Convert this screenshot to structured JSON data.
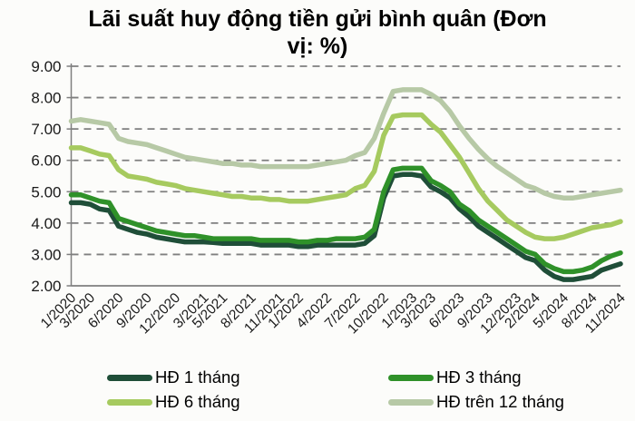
{
  "title_lines": [
    "Lãi suất huy động tiền gửi bình quân (Đơn",
    "vị: %)"
  ],
  "chart_data": {
    "type": "line",
    "title": "Lãi suất huy động tiền gửi bình quân (Đơn vị: %)",
    "unit": "%",
    "ylim": [
      2,
      9
    ],
    "y_ticks": [
      "9.00",
      "8.00",
      "7.00",
      "6.00",
      "5.00",
      "4.00",
      "3.00",
      "2.00"
    ],
    "grid": "horizontal-dashed",
    "legend_position": "bottom",
    "colors": {
      "gridline": "#7f7f7f",
      "axis": "#7f7f7f",
      "tick_text": "#1a1a1a"
    },
    "x_months": [
      "1/2020",
      "2/2020",
      "3/2020",
      "4/2020",
      "5/2020",
      "6/2020",
      "7/2020",
      "8/2020",
      "9/2020",
      "10/2020",
      "11/2020",
      "12/2020",
      "1/2021",
      "2/2021",
      "3/2021",
      "4/2021",
      "5/2021",
      "6/2021",
      "7/2021",
      "8/2021",
      "9/2021",
      "10/2021",
      "11/2021",
      "12/2021",
      "1/2022",
      "2/2022",
      "3/2022",
      "4/2022",
      "5/2022",
      "6/2022",
      "7/2022",
      "8/2022",
      "9/2022",
      "10/2022",
      "11/2022",
      "12/2022",
      "1/2023",
      "2/2023",
      "3/2023",
      "4/2023",
      "5/2023",
      "6/2023",
      "7/2023",
      "8/2023",
      "9/2023",
      "10/2023",
      "11/2023",
      "12/2023",
      "1/2024",
      "2/2024",
      "3/2024",
      "4/2024",
      "5/2024",
      "6/2024",
      "7/2024",
      "8/2024",
      "9/2024",
      "10/2024",
      "11/2024"
    ],
    "x_tick_indices": [
      0,
      2,
      5,
      8,
      11,
      14,
      16,
      19,
      22,
      24,
      27,
      30,
      33,
      36,
      38,
      41,
      44,
      47,
      49,
      52,
      55,
      58
    ],
    "x_tick_labels": [
      "1/2020",
      "3/2020",
      "6/2020",
      "9/2020",
      "12/2020",
      "3/2021",
      "5/2021",
      "8/2021",
      "11/2021",
      "1/2022",
      "4/2022",
      "7/2022",
      "10/2022",
      "1/2023",
      "3/2023",
      "6/2023",
      "9/2023",
      "12/2023",
      "2/2024",
      "5/2024",
      "8/2024",
      "11/2024"
    ],
    "series": [
      {
        "name": "HĐ 1 tháng",
        "color": "#1f4e38",
        "values": [
          4.65,
          4.65,
          4.6,
          4.45,
          4.4,
          3.9,
          3.8,
          3.7,
          3.65,
          3.55,
          3.5,
          3.45,
          3.4,
          3.4,
          3.4,
          3.38,
          3.35,
          3.35,
          3.35,
          3.35,
          3.3,
          3.3,
          3.3,
          3.3,
          3.25,
          3.25,
          3.3,
          3.3,
          3.3,
          3.3,
          3.3,
          3.35,
          3.6,
          4.8,
          5.5,
          5.55,
          5.55,
          5.5,
          5.15,
          5.0,
          4.8,
          4.45,
          4.2,
          3.9,
          3.7,
          3.5,
          3.3,
          3.1,
          2.9,
          2.8,
          2.5,
          2.3,
          2.2,
          2.2,
          2.25,
          2.3,
          2.5,
          2.6,
          2.7
        ]
      },
      {
        "name": "HĐ 3 tháng",
        "color": "#2f9129",
        "values": [
          4.9,
          4.9,
          4.8,
          4.7,
          4.65,
          4.15,
          4.05,
          3.95,
          3.85,
          3.75,
          3.7,
          3.65,
          3.6,
          3.6,
          3.55,
          3.5,
          3.5,
          3.5,
          3.5,
          3.5,
          3.45,
          3.45,
          3.45,
          3.45,
          3.4,
          3.4,
          3.45,
          3.45,
          3.5,
          3.5,
          3.5,
          3.55,
          3.8,
          5.0,
          5.7,
          5.75,
          5.75,
          5.75,
          5.35,
          5.2,
          5.0,
          4.6,
          4.4,
          4.1,
          3.9,
          3.7,
          3.5,
          3.3,
          3.1,
          3.0,
          2.7,
          2.55,
          2.45,
          2.45,
          2.5,
          2.6,
          2.8,
          2.95,
          3.05
        ]
      },
      {
        "name": "HĐ 6 tháng",
        "color": "#a6ca5f",
        "values": [
          6.4,
          6.4,
          6.3,
          6.2,
          6.15,
          5.7,
          5.5,
          5.45,
          5.4,
          5.3,
          5.25,
          5.2,
          5.1,
          5.05,
          5.0,
          4.95,
          4.9,
          4.85,
          4.85,
          4.8,
          4.8,
          4.75,
          4.75,
          4.7,
          4.7,
          4.7,
          4.75,
          4.8,
          4.85,
          4.9,
          5.1,
          5.2,
          5.65,
          6.8,
          7.4,
          7.45,
          7.45,
          7.45,
          7.15,
          6.9,
          6.5,
          6.1,
          5.6,
          5.1,
          4.7,
          4.4,
          4.1,
          3.9,
          3.7,
          3.55,
          3.5,
          3.5,
          3.55,
          3.65,
          3.75,
          3.85,
          3.9,
          3.95,
          4.05
        ]
      },
      {
        "name": "HĐ trên 12 tháng",
        "color": "#b7c9a6",
        "values": [
          7.25,
          7.3,
          7.25,
          7.2,
          7.15,
          6.7,
          6.6,
          6.55,
          6.5,
          6.4,
          6.3,
          6.2,
          6.1,
          6.05,
          6.0,
          5.95,
          5.9,
          5.9,
          5.85,
          5.85,
          5.8,
          5.8,
          5.8,
          5.8,
          5.8,
          5.8,
          5.85,
          5.9,
          5.95,
          6.0,
          6.15,
          6.25,
          6.7,
          7.5,
          8.2,
          8.25,
          8.25,
          8.25,
          8.1,
          7.9,
          7.55,
          7.1,
          6.7,
          6.35,
          6.05,
          5.8,
          5.6,
          5.4,
          5.2,
          5.1,
          4.95,
          4.85,
          4.8,
          4.8,
          4.85,
          4.9,
          4.95,
          5.0,
          5.05
        ]
      }
    ]
  }
}
